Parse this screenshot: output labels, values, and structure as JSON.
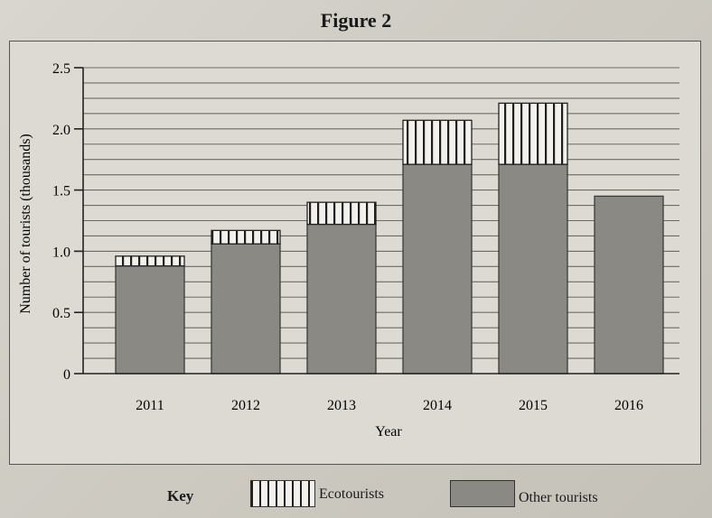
{
  "figure_title": "Figure 2",
  "chart_data": {
    "type": "bar",
    "stacked": true,
    "categories": [
      "2011",
      "2012",
      "2013",
      "2014",
      "2015",
      "2016"
    ],
    "series": [
      {
        "name": "Other tourists",
        "values": [
          0.88,
          1.06,
          1.22,
          1.71,
          1.71,
          1.45
        ]
      },
      {
        "name": "Ecotourists",
        "values": [
          0.08,
          0.11,
          0.18,
          0.36,
          0.5,
          0.0
        ]
      }
    ],
    "xlabel": "Year",
    "ylabel": "Number of tourists (thousands)",
    "ylim": [
      0,
      2.5
    ],
    "yticks": [
      "0",
      "0.5",
      "1.0",
      "1.5",
      "2.0",
      "2.5"
    ],
    "ytick_values": [
      0,
      0.5,
      1.0,
      1.5,
      2.0,
      2.5
    ],
    "grid": true,
    "legend_position": "bottom"
  },
  "key": {
    "label": "Key",
    "items": [
      {
        "name": "Ecotourists",
        "pattern": "vertical-stripes"
      },
      {
        "name": "Other tourists",
        "color": "#8a8984"
      }
    ]
  },
  "colors": {
    "other": "#8a8984",
    "eco_fill": "#f2f1ec",
    "eco_stripe": "#1f1f1f"
  }
}
